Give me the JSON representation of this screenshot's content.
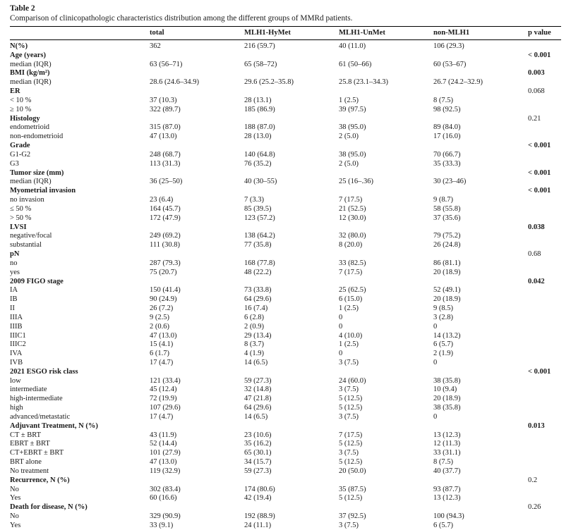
{
  "table": {
    "label": "Table 2",
    "caption": "Comparison of clinicopathologic characteristics distribution among the different groups of MMRd patients.",
    "columns": [
      "",
      "total",
      "MLH1-HyMet",
      "MLH1-UnMet",
      "non-MLH1",
      "p value"
    ],
    "rows": [
      {
        "label": "N(%)",
        "bold": true,
        "cells": [
          "362",
          "216 (59.7)",
          "40 (11.0)",
          "106 (29.3)"
        ],
        "p": "",
        "p_bold": false
      },
      {
        "label": "Age (years)",
        "bold": true,
        "cells": [
          "",
          "",
          "",
          ""
        ],
        "p": "< 0.001",
        "p_bold": true
      },
      {
        "label": "median (IQR)",
        "bold": false,
        "cells": [
          "63 (56–71)",
          "65 (58–72)",
          "61 (50–66)",
          "60 (53–67)"
        ],
        "p": "",
        "p_bold": false
      },
      {
        "label": "BMI (kg/m²)",
        "bold": true,
        "cells": [
          "",
          "",
          "",
          ""
        ],
        "p": "0.003",
        "p_bold": true
      },
      {
        "label": "median (IQR)",
        "bold": false,
        "cells": [
          "28.6 (24.6–34.9)",
          "29.6 (25.2–35.8)",
          "25.8 (23.1–34.3)",
          "26.7 (24.2–32.9)"
        ],
        "p": "",
        "p_bold": false
      },
      {
        "label": "ER",
        "bold": true,
        "cells": [
          "",
          "",
          "",
          ""
        ],
        "p": "0.068",
        "p_bold": false
      },
      {
        "label": "< 10 %",
        "bold": false,
        "cells": [
          "37 (10.3)",
          "28 (13.1)",
          "1 (2.5)",
          "8 (7.5)"
        ],
        "p": "",
        "p_bold": false
      },
      {
        "label": "≥ 10 %",
        "bold": false,
        "cells": [
          "322 (89.7)",
          "185 (86.9)",
          "39 (97.5)",
          "98 (92.5)"
        ],
        "p": "",
        "p_bold": false
      },
      {
        "label": "Histology",
        "bold": true,
        "cells": [
          "",
          "",
          "",
          ""
        ],
        "p": "0.21",
        "p_bold": false
      },
      {
        "label": "endometrioid",
        "bold": false,
        "cells": [
          "315 (87.0)",
          "188 (87.0)",
          "38 (95.0)",
          "89 (84.0)"
        ],
        "p": "",
        "p_bold": false
      },
      {
        "label": "non-endometrioid",
        "bold": false,
        "cells": [
          "47 (13.0)",
          "28 (13.0)",
          "2 (5.0)",
          "17 (16.0)"
        ],
        "p": "",
        "p_bold": false
      },
      {
        "label": "Grade",
        "bold": true,
        "cells": [
          "",
          "",
          "",
          ""
        ],
        "p": "< 0.001",
        "p_bold": true
      },
      {
        "label": "G1-G2",
        "bold": false,
        "cells": [
          "248 (68.7)",
          "140 (64.8)",
          "38 (95.0)",
          "70 (66.7)"
        ],
        "p": "",
        "p_bold": false
      },
      {
        "label": "G3",
        "bold": false,
        "cells": [
          "113 (31.3)",
          "76 (35.2)",
          "2 (5.0)",
          "35 (33.3)"
        ],
        "p": "",
        "p_bold": false
      },
      {
        "label": "Tumor size (mm)",
        "bold": true,
        "cells": [
          "",
          "",
          "",
          ""
        ],
        "p": "< 0.001",
        "p_bold": true
      },
      {
        "label": "median (IQR)",
        "bold": false,
        "cells": [
          "36 (25–50)",
          "40 (30–55)",
          "25 (16–.36)",
          "30 (23–46)"
        ],
        "p": "",
        "p_bold": false
      },
      {
        "label": "Myometrial invasion",
        "bold": true,
        "cells": [
          "",
          "",
          "",
          ""
        ],
        "p": "< 0.001",
        "p_bold": true
      },
      {
        "label": "no invasion",
        "bold": false,
        "cells": [
          "23 (6.4)",
          "7 (3.3)",
          "7 (17.5)",
          "9 (8.7)"
        ],
        "p": "",
        "p_bold": false
      },
      {
        "label": "≤ 50 %",
        "bold": false,
        "cells": [
          "164 (45.7)",
          "85 (39.5)",
          "21 (52.5)",
          "58 (55.8)"
        ],
        "p": "",
        "p_bold": false
      },
      {
        "label": "> 50 %",
        "bold": false,
        "cells": [
          "172 (47.9)",
          "123 (57.2)",
          "12 (30.0)",
          "37 (35.6)"
        ],
        "p": "",
        "p_bold": false
      },
      {
        "label": "LVSI",
        "bold": true,
        "cells": [
          "",
          "",
          "",
          ""
        ],
        "p": "0.038",
        "p_bold": true
      },
      {
        "label": "negative/focal",
        "bold": false,
        "cells": [
          "249 (69.2)",
          "138 (64.2)",
          "32 (80.0)",
          "79 (75.2)"
        ],
        "p": "",
        "p_bold": false
      },
      {
        "label": "substantial",
        "bold": false,
        "cells": [
          "111 (30.8)",
          "77 (35.8)",
          "8 (20.0)",
          "26 (24.8)"
        ],
        "p": "",
        "p_bold": false
      },
      {
        "label": "pN",
        "bold": true,
        "cells": [
          "",
          "",
          "",
          ""
        ],
        "p": "0.68",
        "p_bold": false
      },
      {
        "label": "no",
        "bold": false,
        "cells": [
          "287 (79.3)",
          "168 (77.8)",
          "33 (82.5)",
          "86 (81.1)"
        ],
        "p": "",
        "p_bold": false
      },
      {
        "label": "yes",
        "bold": false,
        "cells": [
          "75 (20.7)",
          "48 (22.2)",
          "7 (17.5)",
          "20 (18.9)"
        ],
        "p": "",
        "p_bold": false
      },
      {
        "label": "2009 FIGO stage",
        "bold": true,
        "cells": [
          "",
          "",
          "",
          ""
        ],
        "p": "0.042",
        "p_bold": true
      },
      {
        "label": "IA",
        "bold": false,
        "cells": [
          "150 (41.4)",
          "73 (33.8)",
          "25 (62.5)",
          "52 (49.1)"
        ],
        "p": "",
        "p_bold": false
      },
      {
        "label": "IB",
        "bold": false,
        "cells": [
          "90 (24.9)",
          "64 (29.6)",
          "6 (15.0)",
          "20 (18.9)"
        ],
        "p": "",
        "p_bold": false
      },
      {
        "label": "II",
        "bold": false,
        "cells": [
          "26 (7.2)",
          "16 (7.4)",
          "1 (2.5)",
          "9 (8.5)"
        ],
        "p": "",
        "p_bold": false
      },
      {
        "label": "IIIA",
        "bold": false,
        "cells": [
          "9 (2.5)",
          "6 (2.8)",
          "0",
          "3 (2.8)"
        ],
        "p": "",
        "p_bold": false
      },
      {
        "label": "IIIB",
        "bold": false,
        "cells": [
          "2 (0.6)",
          "2 (0.9)",
          "0",
          "0"
        ],
        "p": "",
        "p_bold": false
      },
      {
        "label": "IIIC1",
        "bold": false,
        "cells": [
          "47 (13.0)",
          "29 (13.4)",
          "4 (10.0)",
          "14 (13.2)"
        ],
        "p": "",
        "p_bold": false
      },
      {
        "label": "IIIC2",
        "bold": false,
        "cells": [
          "15 (4.1)",
          "8 (3.7)",
          "1 (2.5)",
          "6 (5.7)"
        ],
        "p": "",
        "p_bold": false
      },
      {
        "label": "IVA",
        "bold": false,
        "cells": [
          "6 (1.7)",
          "4 (1.9)",
          "0",
          "2 (1.9)"
        ],
        "p": "",
        "p_bold": false
      },
      {
        "label": "IVB",
        "bold": false,
        "cells": [
          "17 (4.7)",
          "14 (6.5)",
          "3 (7.5)",
          "0"
        ],
        "p": "",
        "p_bold": false
      },
      {
        "label": "2021 ESGO risk class",
        "bold": true,
        "cells": [
          "",
          "",
          "",
          ""
        ],
        "p": "< 0.001",
        "p_bold": true
      },
      {
        "label": "low",
        "bold": false,
        "cells": [
          "121 (33.4)",
          "59 (27.3)",
          "24 (60.0)",
          "38 (35.8)"
        ],
        "p": "",
        "p_bold": false
      },
      {
        "label": "intermediate",
        "bold": false,
        "cells": [
          "45 (12.4)",
          "32 (14.8)",
          "3 (7.5)",
          "10 (9.4)"
        ],
        "p": "",
        "p_bold": false
      },
      {
        "label": "high-intermediate",
        "bold": false,
        "cells": [
          "72 (19.9)",
          "47 (21.8)",
          "5 (12.5)",
          "20 (18.9)"
        ],
        "p": "",
        "p_bold": false
      },
      {
        "label": "high",
        "bold": false,
        "cells": [
          "107 (29.6)",
          "64 (29.6)",
          "5 (12.5)",
          "38 (35.8)"
        ],
        "p": "",
        "p_bold": false
      },
      {
        "label": "advanced/metastatic",
        "bold": false,
        "cells": [
          "17 (4.7)",
          "14 (6.5)",
          "3 (7.5)",
          "0"
        ],
        "p": "",
        "p_bold": false
      },
      {
        "label": "Adjuvant Treatment, N (%)",
        "bold": true,
        "cells": [
          "",
          "",
          "",
          ""
        ],
        "p": "0.013",
        "p_bold": true
      },
      {
        "label": "CT ± BRT",
        "bold": false,
        "cells": [
          "43 (11.9)",
          "23 (10.6)",
          "7 (17.5)",
          "13 (12.3)"
        ],
        "p": "",
        "p_bold": false
      },
      {
        "label": "EBRT ± BRT",
        "bold": false,
        "cells": [
          "52 (14.4)",
          "35 (16.2)",
          "5 (12.5)",
          "12 (11.3)"
        ],
        "p": "",
        "p_bold": false
      },
      {
        "label": "CT+EBRT ± BRT",
        "bold": false,
        "cells": [
          "101 (27.9)",
          "65 (30.1)",
          "3 (7.5)",
          "33 (31.1)"
        ],
        "p": "",
        "p_bold": false
      },
      {
        "label": "BRT alone",
        "bold": false,
        "cells": [
          "47 (13.0)",
          "34 (15.7)",
          "5 (12.5)",
          "8 (7.5)"
        ],
        "p": "",
        "p_bold": false
      },
      {
        "label": "No treatment",
        "bold": false,
        "cells": [
          "119 (32.9)",
          "59 (27.3)",
          "20 (50.0)",
          "40 (37.7)"
        ],
        "p": "",
        "p_bold": false
      },
      {
        "label": "Recurrence, N (%)",
        "bold": true,
        "cells": [
          "",
          "",
          "",
          ""
        ],
        "p": "0.2",
        "p_bold": false
      },
      {
        "label": "No",
        "bold": false,
        "cells": [
          "302 (83.4)",
          "174 (80.6)",
          "35 (87.5)",
          "93 (87.7)"
        ],
        "p": "",
        "p_bold": false
      },
      {
        "label": "Yes",
        "bold": false,
        "cells": [
          "60 (16.6)",
          "42 (19.4)",
          "5 (12.5)",
          "13 (12.3)"
        ],
        "p": "",
        "p_bold": false
      },
      {
        "label": "Death for disease, N (%)",
        "bold": true,
        "cells": [
          "",
          "",
          "",
          ""
        ],
        "p": "0.26",
        "p_bold": false
      },
      {
        "label": "No",
        "bold": false,
        "cells": [
          "329 (90.9)",
          "192 (88.9)",
          "37 (92.5)",
          "100 (94.3)"
        ],
        "p": "",
        "p_bold": false
      },
      {
        "label": "Yes",
        "bold": false,
        "cells": [
          "33 (9.1)",
          "24 (11.1)",
          "3 (7.5)",
          "6 (5.7)"
        ],
        "p": "",
        "p_bold": false
      }
    ]
  }
}
